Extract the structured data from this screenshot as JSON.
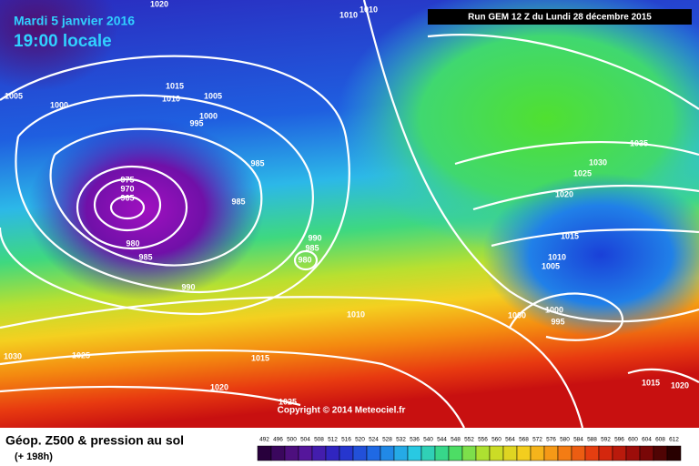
{
  "header": {
    "date": "Mardi 5 janvier 2016",
    "time": "19:00 locale",
    "run": "Run GEM 12 Z du Lundi 28 décembre 2015",
    "copyright": "Copyright © 2014 Meteociel.fr"
  },
  "footer": {
    "title": "Géop. Z500 & pression au sol",
    "lead": "(+ 198h)"
  },
  "isobar_labels": [
    "1020",
    "1010",
    "1010",
    "1005",
    "1000",
    "1015",
    "1010",
    "1005",
    "1000",
    "995",
    "985",
    "975",
    "970",
    "965",
    "985",
    "980",
    "985",
    "990",
    "990",
    "985",
    "980",
    "1035",
    "1030",
    "1025",
    "1020",
    "1015",
    "1010",
    "1005",
    "1000",
    "1000",
    "995",
    "1010",
    "1030",
    "1025",
    "1015",
    "1020",
    "1025",
    "1015",
    "1020"
  ],
  "colorbar": [
    492,
    496,
    500,
    504,
    508,
    512,
    516,
    520,
    524,
    528,
    532,
    536,
    540,
    544,
    548,
    552,
    556,
    560,
    564,
    568,
    572,
    576,
    580,
    584,
    588,
    592,
    596,
    600,
    604,
    608,
    612
  ]
}
